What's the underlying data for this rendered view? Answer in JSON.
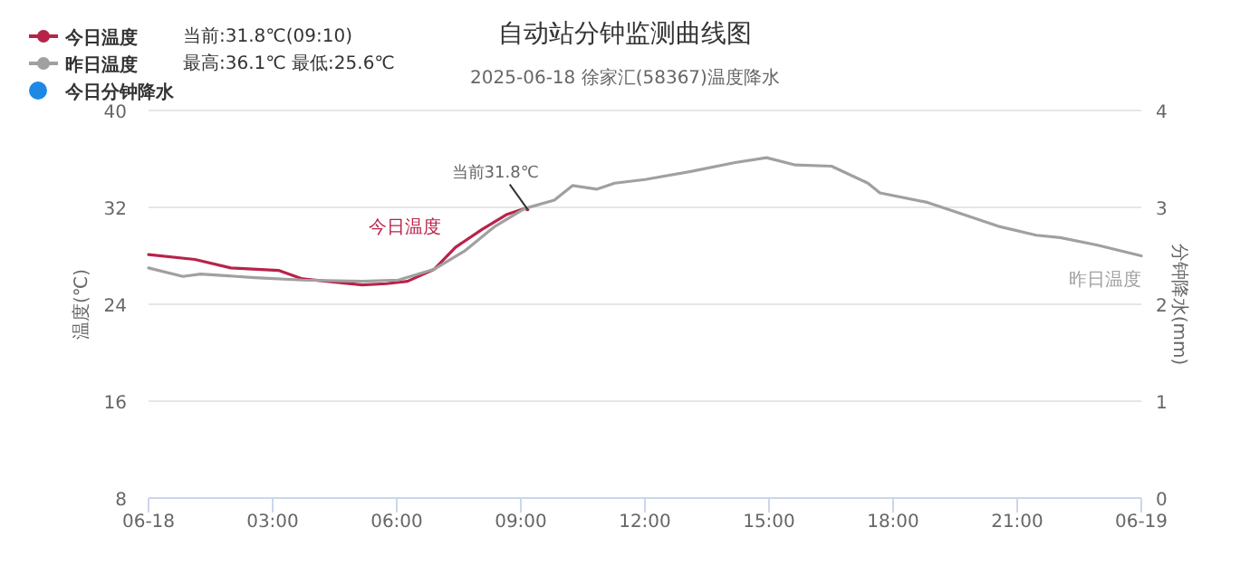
{
  "chart_data": {
    "type": "line",
    "title": "自动站分钟监测曲线图",
    "subtitle": "2025-06-18 徐家汇(58367)温度降水",
    "ylabel": "温度(℃)",
    "y2label": "分钟降水(mm)",
    "xlim": [
      0,
      24
    ],
    "xticks": [
      {
        "value": 0,
        "label": "06-18"
      },
      {
        "value": 3,
        "label": "03:00"
      },
      {
        "value": 6,
        "label": "06:00"
      },
      {
        "value": 9,
        "label": "09:00"
      },
      {
        "value": 12,
        "label": "12:00"
      },
      {
        "value": 15,
        "label": "15:00"
      },
      {
        "value": 18,
        "label": "18:00"
      },
      {
        "value": 21,
        "label": "21:00"
      },
      {
        "value": 24,
        "label": "06-19"
      }
    ],
    "ylim": [
      8,
      40
    ],
    "yticks": [
      8,
      16,
      24,
      32,
      40
    ],
    "y2lim": [
      0,
      4
    ],
    "y2ticks": [
      0,
      1,
      2,
      3,
      4
    ],
    "grid": "y",
    "legend": "top left",
    "series": [
      {
        "name": "今日温度",
        "color": "#b8234a",
        "x": [
          0,
          1.12,
          1.99,
          3.14,
          3.72,
          4.3,
          5.17,
          5.75,
          6.26,
          6.91,
          7.42,
          8.07,
          8.65,
          9.09,
          9.17
        ],
        "values": [
          28.1,
          27.7,
          27.0,
          26.8,
          26.1,
          25.9,
          25.6,
          25.7,
          25.9,
          26.9,
          28.7,
          30.2,
          31.4,
          31.9,
          31.8
        ]
      },
      {
        "name": "昨日温度",
        "color": "#a0a0a0",
        "x": [
          0,
          0.83,
          1.26,
          2.57,
          3.72,
          5.17,
          6.04,
          6.91,
          7.64,
          8.36,
          9.09,
          9.81,
          10.25,
          10.83,
          11.27,
          12,
          13.16,
          14.18,
          14.94,
          15.64,
          16.51,
          17.39,
          17.68,
          18.84,
          19.71,
          20.59,
          21.46,
          22.04,
          22.92,
          24
        ],
        "values": [
          27.0,
          26.3,
          26.5,
          26.2,
          26.0,
          25.9,
          26.0,
          26.9,
          28.4,
          30.4,
          31.9,
          32.6,
          33.8,
          33.5,
          34.0,
          34.3,
          35.0,
          35.7,
          36.1,
          35.5,
          35.4,
          34.0,
          33.2,
          32.4,
          31.4,
          30.4,
          29.7,
          29.5,
          28.9,
          28.0
        ]
      },
      {
        "name": "今日分钟降水",
        "color": "#1e88e5",
        "type": "bar"
      }
    ],
    "annotations": [
      "当前:31.8℃(09:10)",
      "最高:36.1℃ 最低:25.6℃",
      {
        "text": "当前31.8℃",
        "x": 9.17,
        "y": 31.8
      }
    ]
  }
}
